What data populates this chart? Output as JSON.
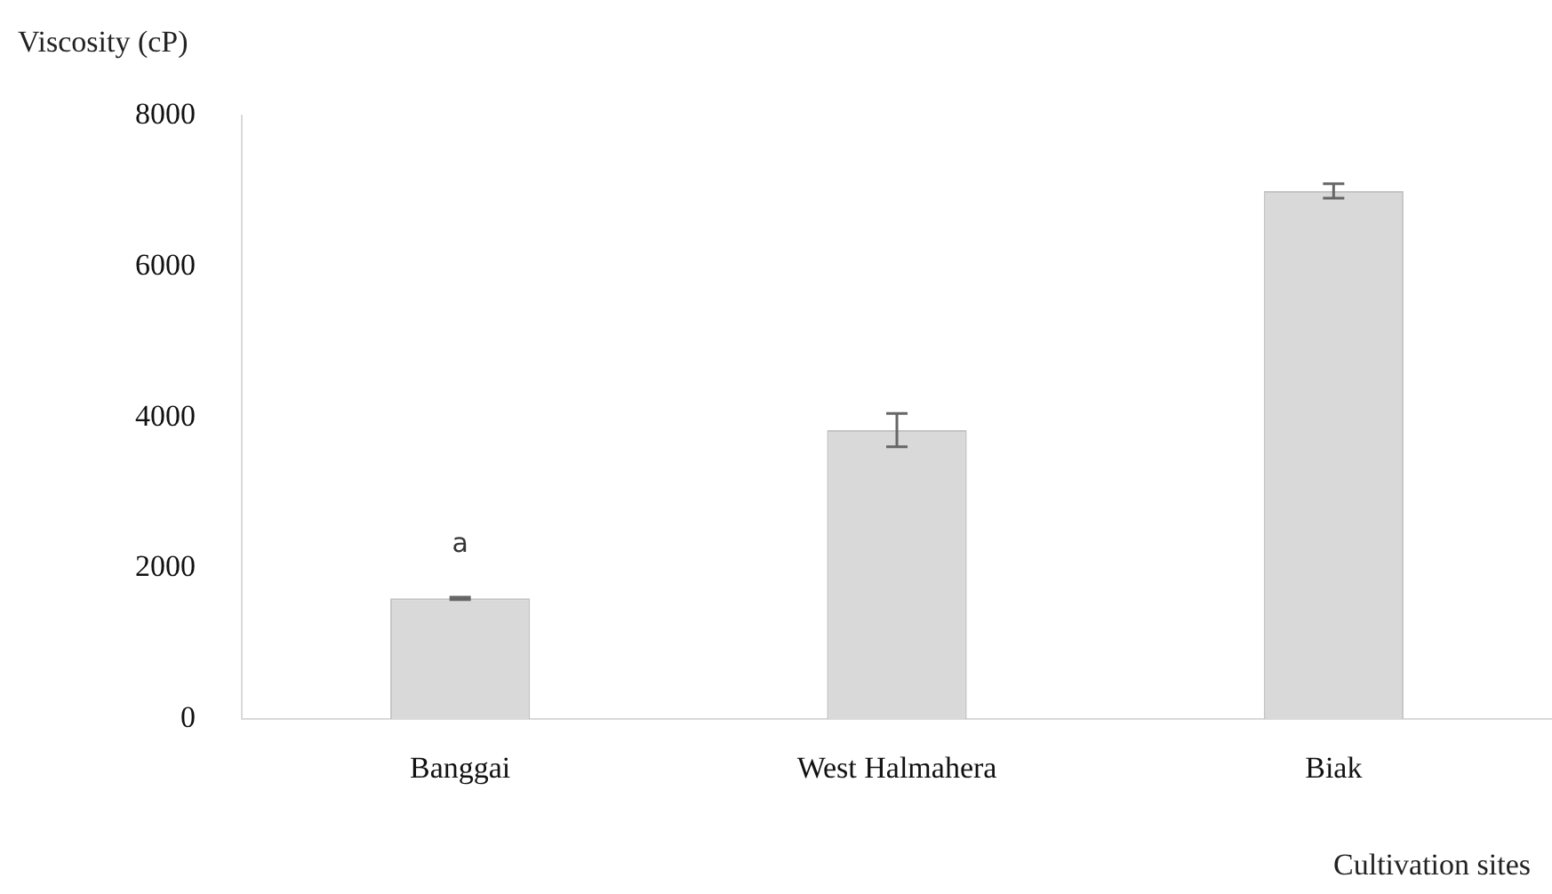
{
  "chart_data": {
    "type": "bar",
    "ylabel": "Viscosity (cP)",
    "xlabel": "Cultivation sites",
    "categories": [
      "Banggai",
      "West Halmahera",
      "Biak"
    ],
    "values": [
      1600,
      3830,
      7000
    ],
    "errors": [
      15,
      220,
      95
    ],
    "color": "#d9d9d9",
    "ylim": [
      0,
      8000
    ],
    "yticks": [
      0,
      2000,
      4000,
      6000,
      8000
    ],
    "grid": false,
    "annotations": [
      "a"
    ]
  }
}
